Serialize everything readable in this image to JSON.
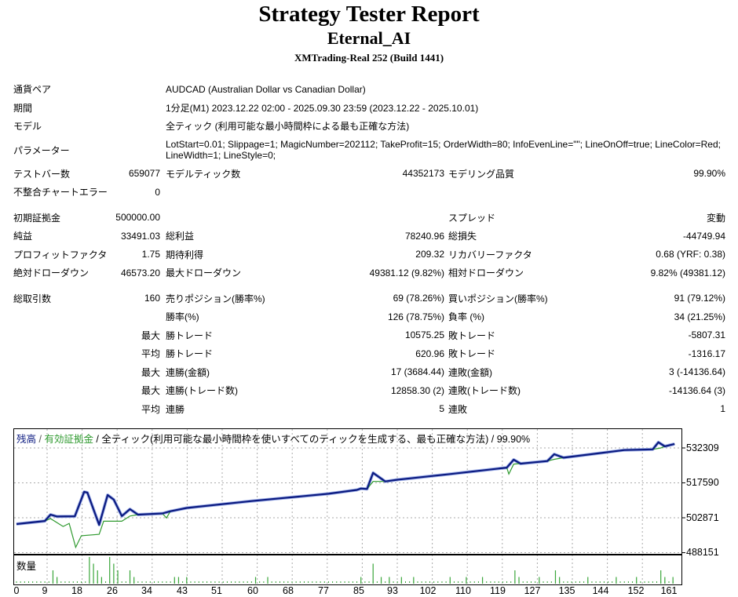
{
  "header": {
    "title": "Strategy Tester Report",
    "ea_name": "Eternal_AI",
    "server": "XMTrading-Real 252 (Build 1441)"
  },
  "info": {
    "symbol_label": "通貨ペア",
    "symbol": "AUDCAD (Australian Dollar vs Canadian Dollar)",
    "period_label": "期間",
    "period": "1分足(M1) 2023.12.22 02:00 - 2025.09.30 23:59 (2023.12.22 - 2025.10.01)",
    "model_label": "モデル",
    "model": "全ティック (利用可能な最小時間枠による最も正確な方法)",
    "params_label": "パラメーター",
    "params": "LotStart=0.01; Slippage=1; MagicNumber=202112; TakeProfit=15; OrderWidth=80; InfoEvenLine=\"\"; LineOnOff=true; LineColor=Red; LineWidth=1; LineStyle=0;"
  },
  "stats": {
    "bars_label": "テストバー数",
    "bars": "659077",
    "ticks_label": "モデルティック数",
    "ticks": "44352173",
    "quality_label": "モデリング品質",
    "quality": "99.90%",
    "mismatch_label": "不整合チャートエラー",
    "mismatch": "0",
    "deposit_label": "初期証拠金",
    "deposit": "500000.00",
    "spread_label": "スプレッド",
    "spread": "変動",
    "net_label": "純益",
    "net": "33491.03",
    "gross_profit_label": "総利益",
    "gross_profit": "78240.96",
    "gross_loss_label": "総損失",
    "gross_loss": "-44749.94",
    "pf_label": "プロフィットファクタ",
    "pf": "1.75",
    "expected_label": "期待利得",
    "expected": "209.32",
    "rf_label": "リカバリーファクタ",
    "rf": "0.68 (YRF: 0.38)",
    "abs_dd_label": "絶対ドローダウン",
    "abs_dd": "46573.20",
    "max_dd_label": "最大ドローダウン",
    "max_dd": "49381.12 (9.82%)",
    "rel_dd_label": "相対ドローダウン",
    "rel_dd": "9.82% (49381.12)",
    "trades_label": "総取引数",
    "trades": "160",
    "short_label": "売りポジション(勝率%)",
    "short": "69 (78.26%)",
    "long_label": "買いポジション(勝率%)",
    "long": "91 (79.12%)",
    "win_rate_label": "勝率(%)",
    "win_rate": "126 (78.75%)",
    "loss_rate_label": "負率 (%)",
    "loss_rate": "34 (21.25%)",
    "max_label": "最大",
    "avg_label": "平均",
    "largest_win_label": "勝トレード",
    "largest_win": "10575.25",
    "largest_loss_label": "敗トレード",
    "largest_loss": "-5807.31",
    "avg_win_label": "勝トレード",
    "avg_win": "620.96",
    "avg_loss_label": "敗トレード",
    "avg_loss": "-1316.17",
    "max_cons_wins_label": "連勝(金額)",
    "max_cons_wins": "17 (3684.44)",
    "max_cons_losses_label": "連敗(金額)",
    "max_cons_losses": "3 (-14136.64)",
    "max_cons_profit_label": "連勝(トレード数)",
    "max_cons_profit": "12858.30 (2)",
    "max_cons_loss_label": "連敗(トレード数)",
    "max_cons_loss": "-14136.64 (3)",
    "avg_cons_wins_label": "連勝",
    "avg_cons_wins": "5",
    "avg_cons_losses_label": "連敗",
    "avg_cons_losses": "1"
  },
  "chart_data": {
    "type": "line",
    "title_parts": {
      "balance": "残高",
      "sep1": " / ",
      "equity": "有効証拠金",
      "rest": " / 全ティック(利用可能な最小時間枠を使いすべてのティックを生成する、最も正確な方法) / 99.90%"
    },
    "volume_label": "数量",
    "y_ticks": [
      "532309",
      "517590",
      "502871",
      "488151"
    ],
    "x_ticks": [
      "0",
      "9",
      "18",
      "26",
      "34",
      "43",
      "51",
      "60",
      "68",
      "77",
      "85",
      "93",
      "102",
      "110",
      "119",
      "127",
      "135",
      "144",
      "152",
      "161"
    ],
    "ylim": [
      488151,
      535500
    ],
    "xlim": [
      0,
      163
    ],
    "grid": true,
    "colors": {
      "balance": "#0b1a80",
      "equity": "#2f9a2f",
      "volume": "#3aa63a"
    },
    "series": [
      {
        "name": "残高",
        "points": [
          [
            0,
            500220
          ],
          [
            7,
            501500
          ],
          [
            8.4,
            504190
          ],
          [
            10,
            503400
          ],
          [
            14.4,
            503500
          ],
          [
            16.7,
            513800
          ],
          [
            17.5,
            513500
          ],
          [
            20.4,
            499900
          ],
          [
            22.5,
            512460
          ],
          [
            24,
            510500
          ],
          [
            26,
            503600
          ],
          [
            28,
            506500
          ],
          [
            30,
            504200
          ],
          [
            36,
            504700
          ],
          [
            38,
            505600
          ],
          [
            42,
            507000
          ],
          [
            58,
            509900
          ],
          [
            77,
            513000
          ],
          [
            84,
            514600
          ],
          [
            85,
            515200
          ],
          [
            86.5,
            515000
          ],
          [
            88,
            521800
          ],
          [
            91,
            518200
          ],
          [
            94,
            518900
          ],
          [
            107,
            521300
          ],
          [
            121,
            524000
          ],
          [
            122.7,
            527350
          ],
          [
            124.4,
            525700
          ],
          [
            131,
            526800
          ],
          [
            132.7,
            529660
          ],
          [
            135,
            528200
          ],
          [
            150,
            531400
          ],
          [
            157,
            531700
          ],
          [
            158.4,
            534700
          ],
          [
            160,
            533000
          ],
          [
            162.4,
            534000
          ]
        ]
      },
      {
        "name": "有効証拠金",
        "points": [
          [
            0,
            500220
          ],
          [
            7,
            501500
          ],
          [
            8.4,
            502500
          ],
          [
            11.5,
            499200
          ],
          [
            13,
            500500
          ],
          [
            14.6,
            490400
          ],
          [
            16,
            495300
          ],
          [
            20.4,
            495900
          ],
          [
            21.5,
            501400
          ],
          [
            26,
            501400
          ],
          [
            28,
            503600
          ],
          [
            30,
            504200
          ],
          [
            36,
            504700
          ],
          [
            37,
            502800
          ],
          [
            38,
            505600
          ],
          [
            42,
            507000
          ],
          [
            58,
            509900
          ],
          [
            77,
            513000
          ],
          [
            85,
            515000
          ],
          [
            86.5,
            515000
          ],
          [
            88,
            518200
          ],
          [
            91,
            518200
          ],
          [
            94,
            518900
          ],
          [
            107,
            521300
          ],
          [
            121,
            524000
          ],
          [
            121.5,
            521300
          ],
          [
            122.7,
            525500
          ],
          [
            131,
            526800
          ],
          [
            132.7,
            527500
          ],
          [
            135,
            528200
          ],
          [
            150,
            531400
          ],
          [
            157,
            531700
          ],
          [
            159,
            532300
          ],
          [
            160,
            533000
          ],
          [
            162.4,
            534000
          ]
        ]
      }
    ],
    "volume": {
      "index": [
        9,
        10,
        18,
        19,
        20,
        21,
        23,
        24,
        25,
        28,
        29,
        39,
        40,
        42,
        59,
        62,
        85,
        88,
        90,
        92,
        95,
        98,
        107,
        111,
        115,
        123,
        124,
        129,
        133,
        134,
        141,
        148,
        153,
        159,
        160,
        162
      ],
      "values": [
        2,
        1,
        4,
        3,
        2,
        1,
        4,
        3,
        2,
        2,
        1,
        1,
        1,
        1,
        1,
        1,
        1,
        3,
        1,
        1,
        1,
        1,
        1,
        1,
        1,
        2,
        1,
        1,
        2,
        1,
        1,
        1,
        1,
        2,
        1,
        1
      ]
    }
  }
}
